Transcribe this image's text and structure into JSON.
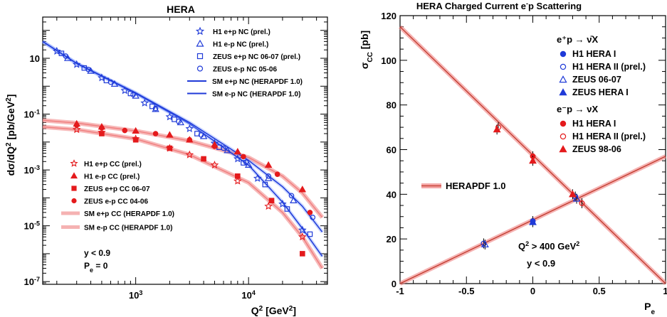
{
  "chart_data": [
    {
      "type": "scatter",
      "title": "HERA",
      "xlabel": "Q^2 [GeV^2]",
      "ylabel": "dσ/dQ^2 [pb/GeV^2]",
      "xscale": "log",
      "yscale": "log",
      "xlim": [
        150,
        50000
      ],
      "ylim": [
        8e-08,
        300
      ],
      "x_tick_labels": [
        "10^3",
        "10^4"
      ],
      "y_tick_labels": [
        "10^-7",
        "10^-5",
        "10^-3",
        "10^-1",
        "10"
      ],
      "legend_top": [
        "H1 e+p NC (prel.)",
        "H1 e-p NC (prel.)",
        "ZEUS e+p NC 06-07 (prel.)",
        "ZEUS e-p NC 05-06",
        "SM e+p NC (HERAPDF 1.0)",
        "SM e-p NC (HERAPDF 1.0)"
      ],
      "legend_bottom": [
        "H1 e+p CC (prel.)",
        "H1 e-p CC (prel.)",
        "ZEUS e+p CC 06-07",
        "ZEUS e-p CC 04-06",
        "SM e+p CC (HERAPDF 1.0)",
        "SM e-p CC (HERAPDF 1.0)"
      ],
      "annotations": [
        "y < 0.9",
        "P_e = 0"
      ],
      "colors": {
        "nc": "#1f3ad8",
        "cc": "#e41a1c",
        "cc_band": "#f08080"
      },
      "series": [
        {
          "name": "H1 e+p NC (prel.)",
          "marker": "star",
          "color": "#1f3ad8",
          "x": [
            200,
            300,
            500,
            800,
            1200,
            2000,
            3000,
            5000,
            8000,
            12000,
            20000,
            30000
          ],
          "y": [
            18,
            6,
            2,
            0.7,
            0.25,
            0.08,
            0.03,
            0.009,
            0.0025,
            0.0005,
            6e-05,
            7e-06
          ]
        },
        {
          "name": "H1 e-p NC (prel.)",
          "marker": "triangle-open",
          "color": "#1f3ad8",
          "x": [
            250,
            400,
            650,
            1000,
            1500,
            2500,
            4000,
            6500,
            10000,
            15000,
            25000
          ],
          "y": [
            10,
            3.5,
            1.2,
            0.45,
            0.15,
            0.05,
            0.016,
            0.005,
            0.0015,
            0.0005,
            8e-05
          ]
        },
        {
          "name": "ZEUS e+p NC 06-07 (prel.)",
          "marker": "square-open",
          "color": "#1f3ad8",
          "x": [
            220,
            350,
            550,
            900,
            1400,
            2200,
            3500,
            5500,
            9000,
            14000,
            22000,
            35000
          ],
          "y": [
            15,
            4.5,
            1.6,
            0.55,
            0.19,
            0.065,
            0.02,
            0.0065,
            0.0018,
            0.0003,
            4e-05,
            5e-06
          ]
        },
        {
          "name": "ZEUS e-p NC 05-06",
          "marker": "circle-open",
          "color": "#1f3ad8",
          "x": [
            240,
            380,
            600,
            950,
            1500,
            2400,
            3800,
            6000,
            9500,
            15000,
            24000,
            37000
          ],
          "y": [
            12,
            4,
            1.4,
            0.5,
            0.16,
            0.055,
            0.018,
            0.006,
            0.0019,
            0.0006,
            0.00012,
            2e-05
          ]
        },
        {
          "name": "H1 e+p CC (prel.)",
          "marker": "star",
          "color": "#e41a1c",
          "x": [
            300,
            500,
            1000,
            2000,
            3000,
            5000,
            8000,
            15000,
            30000
          ],
          "y": [
            0.028,
            0.022,
            0.013,
            0.006,
            0.0035,
            0.0015,
            0.0004,
            5e-05,
            4e-06
          ]
        },
        {
          "name": "H1 e-p CC (prel.)",
          "marker": "triangle",
          "color": "#e41a1c",
          "x": [
            300,
            500,
            1000,
            2000,
            3000,
            5000,
            8000,
            15000,
            30000
          ],
          "y": [
            0.045,
            0.035,
            0.025,
            0.018,
            0.012,
            0.008,
            0.0045,
            0.0015,
            0.0002
          ]
        },
        {
          "name": "ZEUS e+p CC 06-07",
          "marker": "square",
          "color": "#e41a1c",
          "x": [
            500,
            1000,
            2000,
            4000,
            8000,
            16000,
            30000
          ],
          "y": [
            0.02,
            0.012,
            0.006,
            0.0025,
            0.0006,
            8e-05,
            1e-06
          ]
        },
        {
          "name": "ZEUS e-p CC 04-06",
          "marker": "circle",
          "color": "#e41a1c",
          "x": [
            300,
            500,
            800,
            1500,
            3000,
            5000,
            9000,
            18000,
            35000
          ],
          "y": [
            0.04,
            0.032,
            0.026,
            0.02,
            0.012,
            0.007,
            0.003,
            0.0007,
            3e-05
          ]
        }
      ],
      "curves": [
        {
          "name": "SM e+p NC (HERAPDF 1.0)",
          "x": [
            150,
            300,
            1000,
            3000,
            10000,
            20000,
            30000,
            45000
          ],
          "y": [
            40,
            6.5,
            0.55,
            0.045,
            0.0015,
            7e-05,
            8e-06,
            8e-07
          ]
        },
        {
          "name": "SM e-p NC (HERAPDF 1.0)",
          "x": [
            150,
            300,
            1000,
            3000,
            10000,
            20000,
            30000,
            45000
          ],
          "y": [
            40,
            6.6,
            0.58,
            0.05,
            0.0022,
            0.00025,
            5e-05,
            6e-06
          ]
        },
        {
          "name": "SM e+p CC (HERAPDF 1.0)",
          "x": [
            150,
            300,
            1000,
            3000,
            10000,
            20000,
            30000,
            45000
          ],
          "y": [
            0.035,
            0.028,
            0.013,
            0.0035,
            0.00035,
            3e-05,
            4e-06,
            3e-07
          ]
        },
        {
          "name": "SM e-p CC (HERAPDF 1.0)",
          "x": [
            150,
            300,
            1000,
            3000,
            10000,
            20000,
            30000,
            45000
          ],
          "y": [
            0.06,
            0.048,
            0.025,
            0.011,
            0.0028,
            0.0006,
            0.00015,
            2e-05
          ]
        }
      ]
    },
    {
      "type": "scatter",
      "title": "HERA Charged Current e⁻p Scattering",
      "xlabel": "P_e",
      "ylabel": "σ_CC [pb]",
      "xlim": [
        -1,
        1
      ],
      "ylim": [
        0,
        120
      ],
      "x_tick_labels": [
        "-1",
        "-0.5",
        "0",
        "0.5",
        "1"
      ],
      "y_tick_labels": [
        "0",
        "20",
        "40",
        "60",
        "80",
        "100",
        "120"
      ],
      "legend_headers": [
        "e⁺p → ν̄X",
        "e⁻p → νX"
      ],
      "legend_eplus": [
        "H1 HERA I",
        "H1 HERA II (prel.)",
        "ZEUS 06-07",
        "ZEUS HERA I"
      ],
      "legend_eminus": [
        "H1 HERA I",
        "H1 HERA II (prel.)",
        "ZEUS 98-06"
      ],
      "band_label": "HERAPDF 1.0",
      "annotations": [
        "Q^2 > 400 GeV^2",
        "y < 0.9"
      ],
      "colors": {
        "eplus": "#1f3ad8",
        "eminus": "#e41a1c",
        "band": "#f08080"
      },
      "lines": [
        {
          "name": "e+p theory",
          "x": [
            -1,
            1
          ],
          "y": [
            0,
            57
          ]
        },
        {
          "name": "e-p theory",
          "x": [
            -1,
            1
          ],
          "y": [
            115,
            0
          ]
        }
      ],
      "series": [
        {
          "name": "e+p H1 HERA I",
          "marker": "circle",
          "color": "#1f3ad8",
          "x": [
            0
          ],
          "y": [
            28
          ]
        },
        {
          "name": "e+p H1 HERA II (prel.)",
          "marker": "circle-open",
          "color": "#1f3ad8",
          "x": [
            -0.37,
            0.32
          ],
          "y": [
            18,
            39
          ]
        },
        {
          "name": "e+p ZEUS 06-07",
          "marker": "triangle-open",
          "color": "#1f3ad8",
          "x": [
            -0.36,
            0.33
          ],
          "y": [
            17.5,
            38
          ]
        },
        {
          "name": "e+p ZEUS HERA I",
          "marker": "triangle",
          "color": "#1f3ad8",
          "x": [
            0
          ],
          "y": [
            27.5
          ]
        },
        {
          "name": "e-p H1 HERA I",
          "marker": "circle",
          "color": "#e41a1c",
          "x": [
            0
          ],
          "y": [
            57
          ]
        },
        {
          "name": "e-p H1 HERA II (prel.)",
          "marker": "circle-open",
          "color": "#e41a1c",
          "x": [
            -0.26,
            0.37
          ],
          "y": [
            70,
            36
          ]
        },
        {
          "name": "e-p ZEUS 98-06",
          "marker": "triangle",
          "color": "#e41a1c",
          "x": [
            -0.27,
            0.3,
            0
          ],
          "y": [
            69,
            40,
            55
          ]
        }
      ]
    }
  ]
}
